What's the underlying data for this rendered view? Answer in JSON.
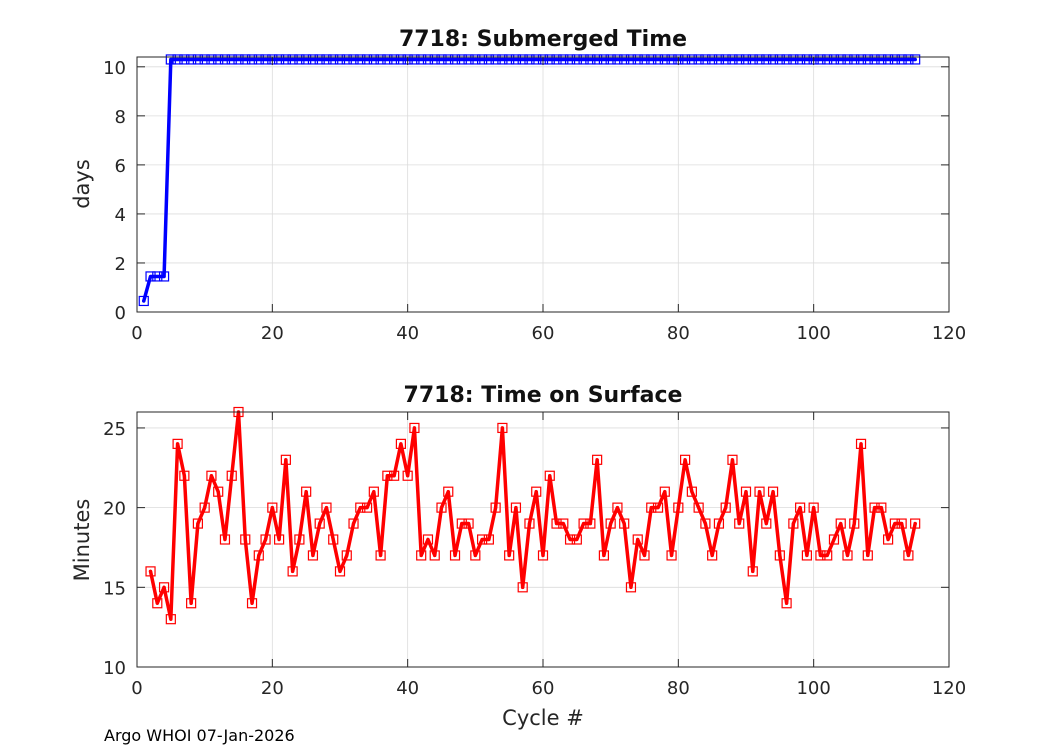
{
  "footer": "Argo WHOI 07-Jan-2026",
  "chart_data": [
    {
      "type": "line",
      "title": "7718: Submerged Time",
      "xlabel": "",
      "ylabel": "days",
      "xlim": [
        0,
        120
      ],
      "ylim": [
        0,
        10.4
      ],
      "xticks": [
        0,
        20,
        40,
        60,
        80,
        100,
        120
      ],
      "yticks": [
        0,
        2,
        4,
        6,
        8,
        10
      ],
      "grid": true,
      "series": [
        {
          "name": "Submerged Time",
          "color": "#0000ff",
          "marker": "square",
          "x": [
            1,
            2,
            3,
            4,
            5,
            6,
            7,
            8,
            9,
            10,
            11,
            12,
            13,
            14,
            15,
            16,
            17,
            18,
            19,
            20,
            21,
            22,
            23,
            24,
            25,
            26,
            27,
            28,
            29,
            30,
            31,
            32,
            33,
            34,
            35,
            36,
            37,
            38,
            39,
            40,
            41,
            42,
            43,
            44,
            45,
            46,
            47,
            48,
            49,
            50,
            51,
            52,
            53,
            54,
            55,
            56,
            57,
            58,
            59,
            60,
            61,
            62,
            63,
            64,
            65,
            66,
            67,
            68,
            69,
            70,
            71,
            72,
            73,
            74,
            75,
            76,
            77,
            78,
            79,
            80,
            81,
            82,
            83,
            84,
            85,
            86,
            87,
            88,
            89,
            90,
            91,
            92,
            93,
            94,
            95,
            96,
            97,
            98,
            99,
            100,
            101,
            102,
            103,
            104,
            105,
            106,
            107,
            108,
            109,
            110,
            111,
            112,
            113,
            114,
            115
          ],
          "values": [
            0.45,
            1.45,
            1.45,
            1.45,
            10.3,
            10.3,
            10.3,
            10.3,
            10.3,
            10.3,
            10.3,
            10.3,
            10.3,
            10.3,
            10.3,
            10.3,
            10.3,
            10.3,
            10.3,
            10.3,
            10.3,
            10.3,
            10.3,
            10.3,
            10.3,
            10.3,
            10.3,
            10.3,
            10.3,
            10.3,
            10.3,
            10.3,
            10.3,
            10.3,
            10.3,
            10.3,
            10.3,
            10.3,
            10.3,
            10.3,
            10.3,
            10.3,
            10.3,
            10.3,
            10.3,
            10.3,
            10.3,
            10.3,
            10.3,
            10.3,
            10.3,
            10.3,
            10.3,
            10.3,
            10.3,
            10.3,
            10.3,
            10.3,
            10.3,
            10.3,
            10.3,
            10.3,
            10.3,
            10.3,
            10.3,
            10.3,
            10.3,
            10.3,
            10.3,
            10.3,
            10.3,
            10.3,
            10.3,
            10.3,
            10.3,
            10.3,
            10.3,
            10.3,
            10.3,
            10.3,
            10.3,
            10.3,
            10.3,
            10.3,
            10.3,
            10.3,
            10.3,
            10.3,
            10.3,
            10.3,
            10.3,
            10.3,
            10.3,
            10.3,
            10.3,
            10.3,
            10.3,
            10.3,
            10.3,
            10.3,
            10.3,
            10.3,
            10.3,
            10.3,
            10.3,
            10.3,
            10.3,
            10.3,
            10.3,
            10.3,
            10.3,
            10.3,
            10.3,
            10.3,
            10.3
          ]
        }
      ]
    },
    {
      "type": "line",
      "title": "7718: Time on Surface",
      "xlabel": "Cycle #",
      "ylabel": "Minutes",
      "xlim": [
        0,
        120
      ],
      "ylim": [
        10,
        26
      ],
      "xticks": [
        0,
        20,
        40,
        60,
        80,
        100,
        120
      ],
      "yticks": [
        10,
        15,
        20,
        25
      ],
      "grid": true,
      "series": [
        {
          "name": "Time on Surface",
          "color": "#ff0000",
          "marker": "square",
          "x": [
            2,
            3,
            4,
            5,
            6,
            7,
            8,
            9,
            10,
            11,
            12,
            13,
            14,
            15,
            16,
            17,
            18,
            19,
            20,
            21,
            22,
            23,
            24,
            25,
            26,
            27,
            28,
            29,
            30,
            31,
            32,
            33,
            34,
            35,
            36,
            37,
            38,
            39,
            40,
            41,
            42,
            43,
            44,
            45,
            46,
            47,
            48,
            49,
            50,
            51,
            52,
            53,
            54,
            55,
            56,
            57,
            58,
            59,
            60,
            61,
            62,
            63,
            64,
            65,
            66,
            67,
            68,
            69,
            70,
            71,
            72,
            73,
            74,
            75,
            76,
            77,
            78,
            79,
            80,
            81,
            82,
            83,
            84,
            85,
            86,
            87,
            88,
            89,
            90,
            91,
            92,
            93,
            94,
            95,
            96,
            97,
            98,
            99,
            100,
            101,
            102,
            103,
            104,
            105,
            106,
            107,
            108,
            109,
            110,
            111,
            112,
            113,
            114,
            115
          ],
          "values": [
            16,
            14,
            15,
            13,
            24,
            22,
            14,
            19,
            20,
            22,
            21,
            18,
            22,
            26,
            18,
            14,
            17,
            18,
            20,
            18,
            23,
            16,
            18,
            21,
            17,
            19,
            20,
            18,
            16,
            17,
            19,
            20,
            20,
            21,
            17,
            22,
            22,
            24,
            22,
            25,
            17,
            18,
            17,
            20,
            21,
            17,
            19,
            19,
            17,
            18,
            18,
            20,
            25,
            17,
            20,
            15,
            19,
            21,
            17,
            22,
            19,
            19,
            18,
            18,
            19,
            19,
            23,
            17,
            19,
            20,
            19,
            15,
            18,
            17,
            20,
            20,
            21,
            17,
            20,
            23,
            21,
            20,
            19,
            17,
            19,
            20,
            23,
            19,
            21,
            16,
            21,
            19,
            21,
            17,
            14,
            19,
            20,
            17,
            20,
            17,
            17,
            18,
            19,
            17,
            19,
            24,
            17,
            20,
            20,
            18,
            19,
            19,
            17,
            19
          ]
        }
      ]
    }
  ]
}
